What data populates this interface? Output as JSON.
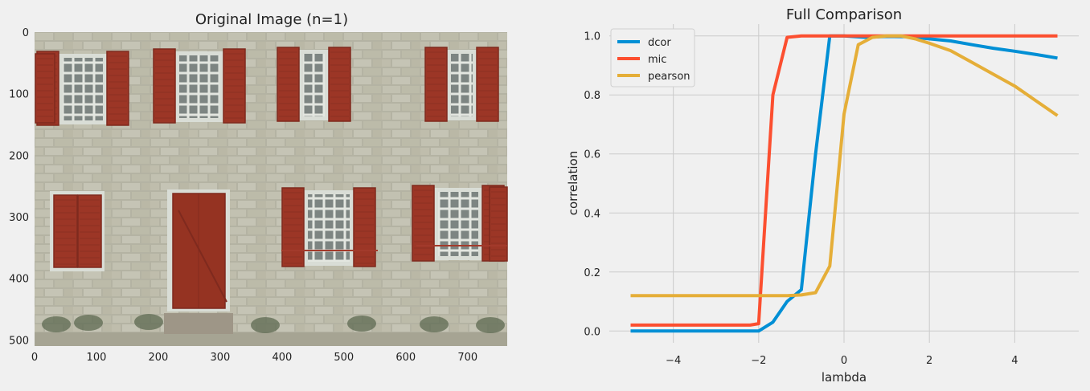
{
  "chart_data": [
    {
      "type": "image",
      "title": "Original Image (n=1)",
      "xlim": [
        0,
        764
      ],
      "ylim": [
        510,
        0
      ],
      "xticks": [
        0,
        100,
        200,
        300,
        400,
        500,
        600,
        700
      ],
      "yticks": [
        0,
        100,
        200,
        300,
        400,
        500
      ],
      "grid": false
    },
    {
      "type": "line",
      "title": "Full Comparison",
      "xlabel": "lambda",
      "ylabel": "correlation",
      "xlim": [
        -5.5,
        5.5
      ],
      "ylim": [
        -0.04,
        1.04
      ],
      "xticks": [
        -4,
        -2,
        0,
        2,
        4
      ],
      "yticks": [
        0.0,
        0.2,
        0.4,
        0.6,
        0.8,
        1.0
      ],
      "grid": true,
      "legend_position": "top-left",
      "series": [
        {
          "name": "dcor",
          "color": "#008fd5",
          "points": [
            [
              -5,
              0
            ],
            [
              -4,
              0
            ],
            [
              -3,
              0
            ],
            [
              -2,
              0
            ],
            [
              -1.667,
              0.03
            ],
            [
              -1.333,
              0.1
            ],
            [
              -1,
              0.14
            ],
            [
              -0.667,
              0.6
            ],
            [
              -0.333,
              1
            ],
            [
              0,
              1
            ],
            [
              0.5,
              0.995
            ],
            [
              1,
              0.998
            ],
            [
              1.5,
              0.997
            ],
            [
              2,
              0.99
            ],
            [
              2.5,
              0.983
            ],
            [
              3,
              0.97
            ],
            [
              3.5,
              0.958
            ],
            [
              4,
              0.948
            ],
            [
              4.5,
              0.937
            ],
            [
              5,
              0.925
            ]
          ]
        },
        {
          "name": "mic",
          "color": "#fc4f30",
          "points": [
            [
              -5,
              0.02
            ],
            [
              -4,
              0.02
            ],
            [
              -3,
              0.02
            ],
            [
              -2.2,
              0.02
            ],
            [
              -2,
              0.025
            ],
            [
              -1.667,
              0.8
            ],
            [
              -1.333,
              0.995
            ],
            [
              -1,
              1
            ],
            [
              0,
              1
            ],
            [
              1,
              1
            ],
            [
              2,
              1
            ],
            [
              3,
              1
            ],
            [
              4,
              1
            ],
            [
              5,
              1
            ]
          ]
        },
        {
          "name": "pearson",
          "color": "#e5ae38",
          "points": [
            [
              -5,
              0.12
            ],
            [
              -4,
              0.12
            ],
            [
              -3,
              0.12
            ],
            [
              -2,
              0.12
            ],
            [
              -1.333,
              0.12
            ],
            [
              -1,
              0.122
            ],
            [
              -0.667,
              0.13
            ],
            [
              -0.333,
              0.22
            ],
            [
              0,
              0.735
            ],
            [
              0.333,
              0.97
            ],
            [
              0.667,
              0.995
            ],
            [
              1,
              1
            ],
            [
              1.333,
              1
            ],
            [
              1.667,
              0.99
            ],
            [
              2,
              0.975
            ],
            [
              2.5,
              0.95
            ],
            [
              3,
              0.91
            ],
            [
              3.5,
              0.87
            ],
            [
              4,
              0.83
            ],
            [
              4.5,
              0.78
            ],
            [
              5,
              0.73
            ]
          ]
        }
      ]
    }
  ]
}
